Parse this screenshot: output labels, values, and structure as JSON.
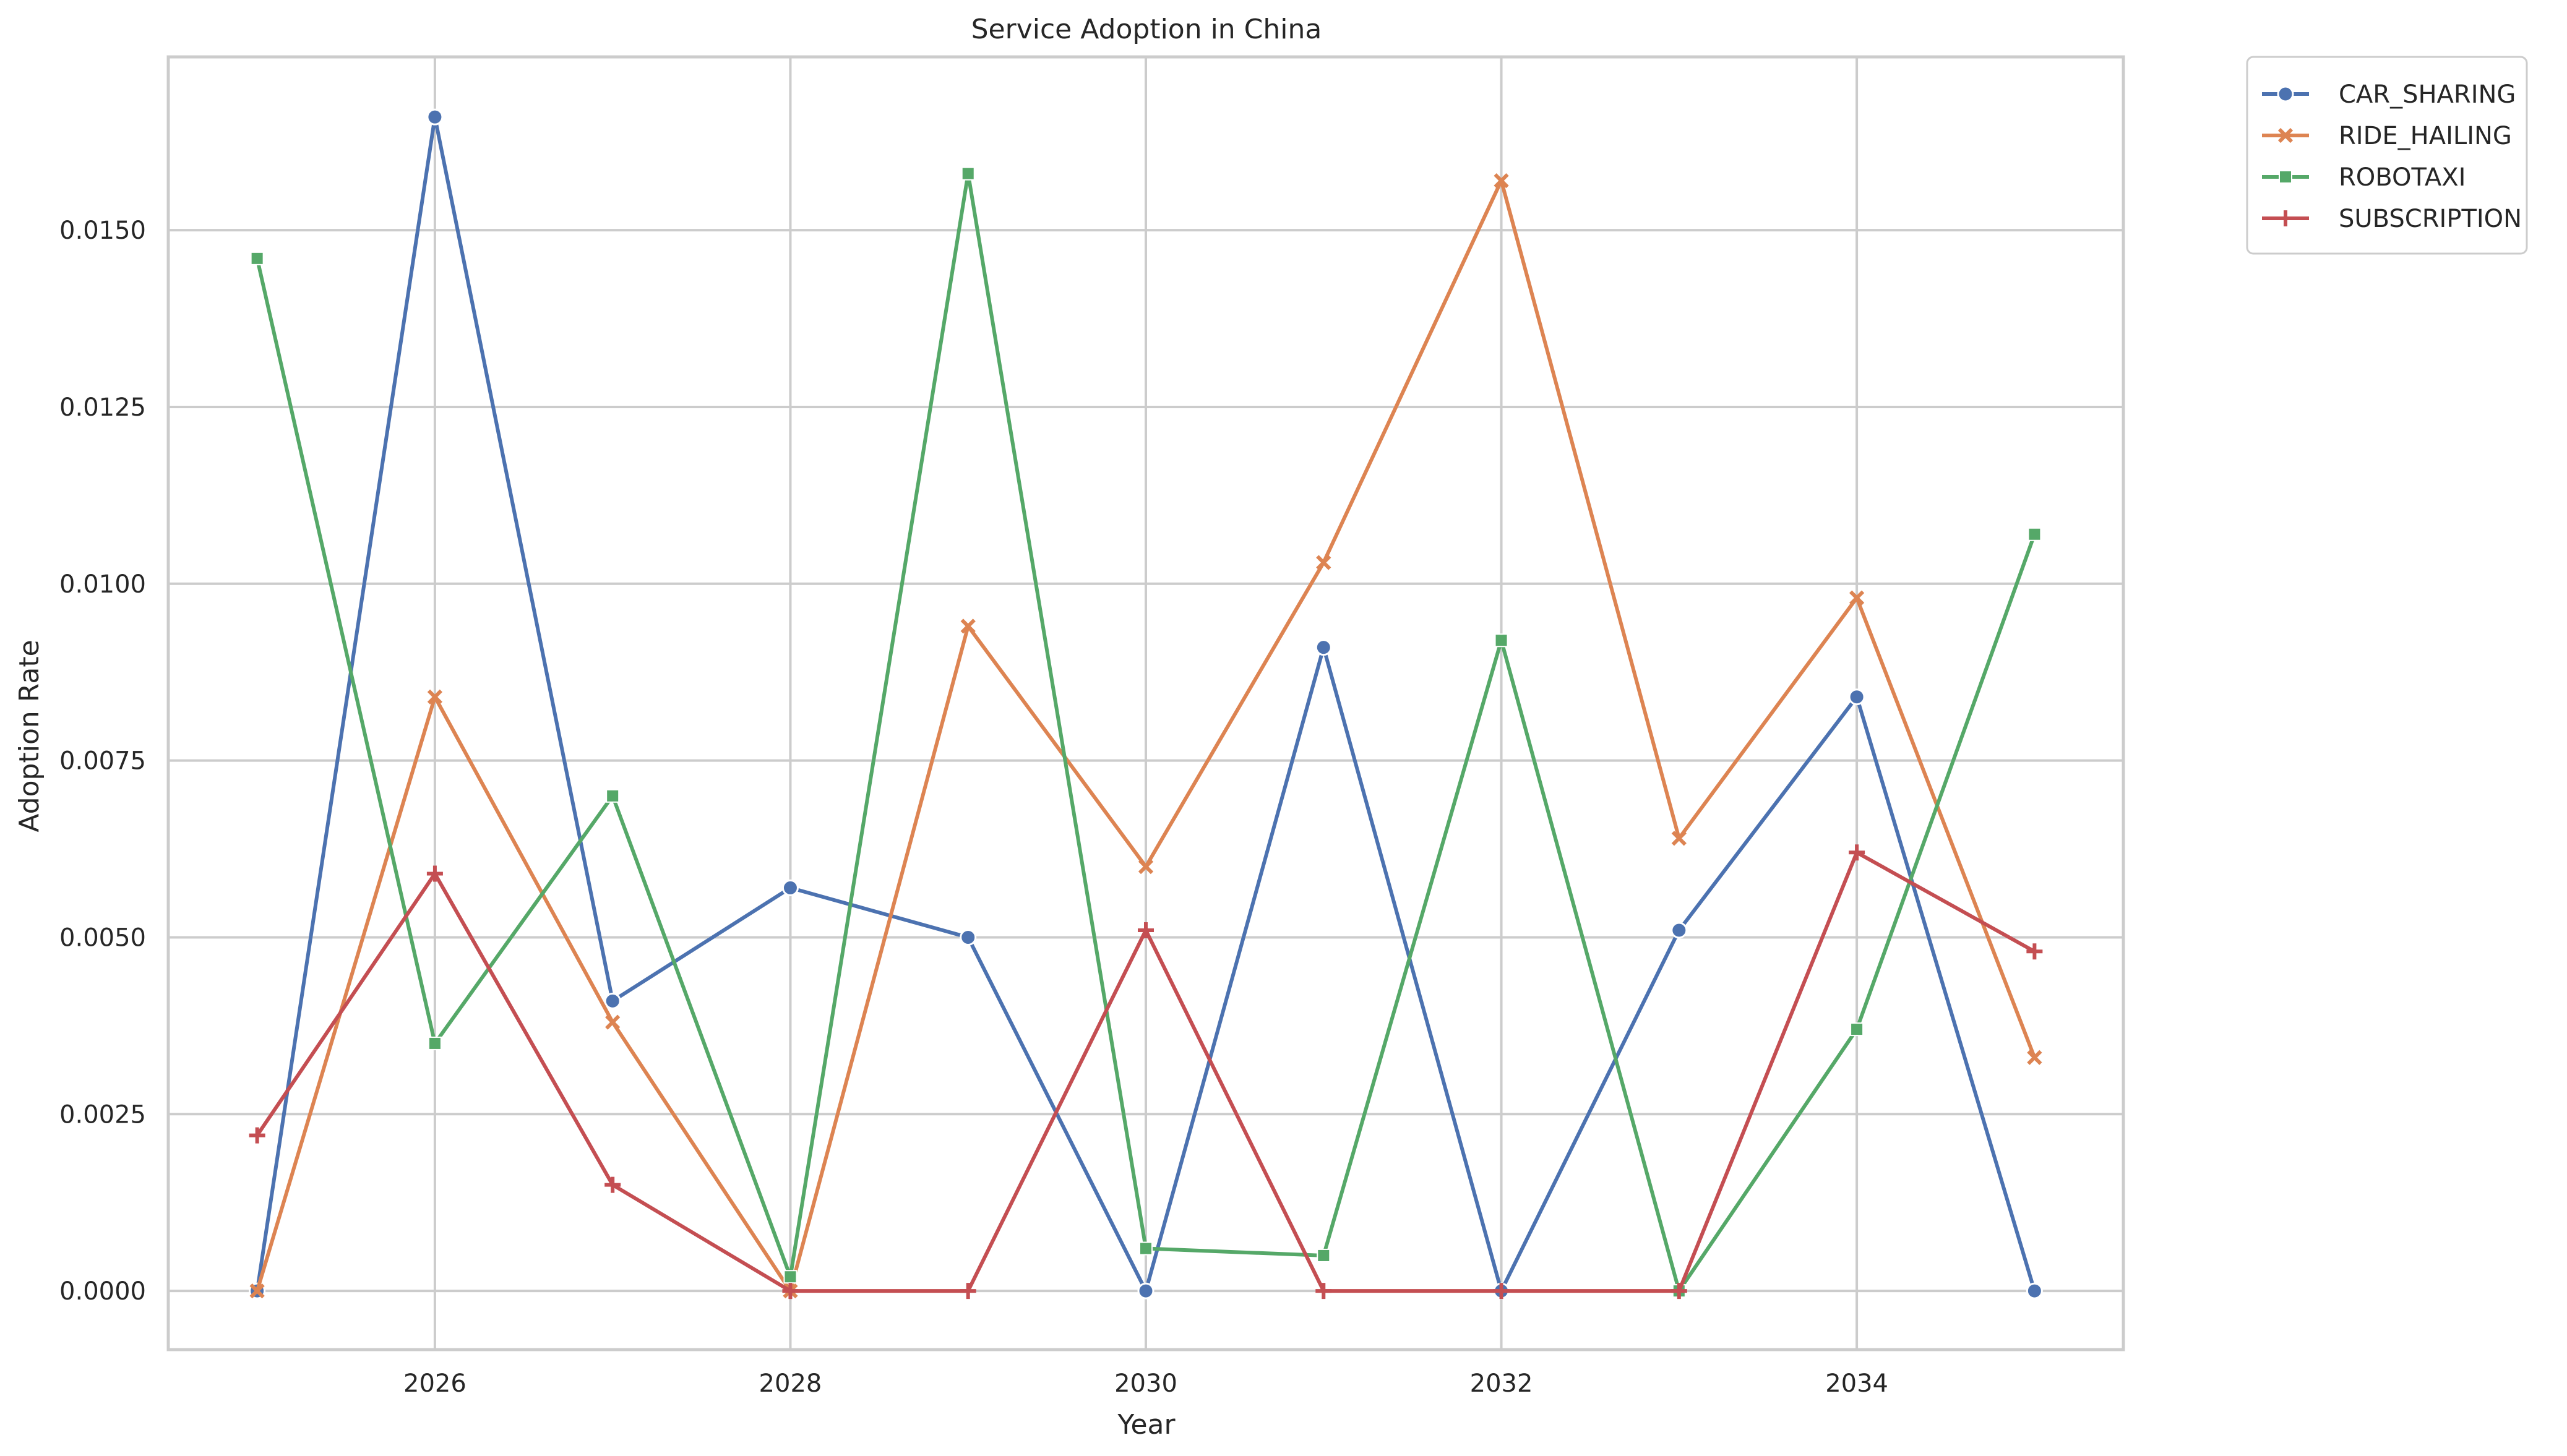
{
  "chart_data": {
    "type": "line",
    "title": "Service Adoption in China",
    "xlabel": "Year",
    "ylabel": "Adoption Rate",
    "x": [
      2025,
      2026,
      2027,
      2028,
      2029,
      2030,
      2031,
      2032,
      2033,
      2034,
      2035
    ],
    "xlim": [
      2024.5,
      2035.5
    ],
    "ylim": [
      -0.00083,
      0.01745
    ],
    "xticks": [
      2026,
      2028,
      2030,
      2032,
      2034
    ],
    "xtick_labels": [
      "2026",
      "2028",
      "2030",
      "2032",
      "2034"
    ],
    "yticks": [
      0,
      0.0025,
      0.005,
      0.0075,
      0.01,
      0.0125,
      0.015
    ],
    "ytick_labels": [
      "0.0000",
      "0.0025",
      "0.0050",
      "0.0075",
      "0.0100",
      "0.0125",
      "0.0150"
    ],
    "grid": true,
    "legend_position": "outside top-right",
    "series": [
      {
        "name": "CAR_SHARING",
        "color": "#4c72b0",
        "marker": "circle",
        "values": [
          0.0,
          0.0166,
          0.0041,
          0.0057,
          0.005,
          0.0,
          0.0091,
          0.0,
          0.0051,
          0.0084,
          0.0
        ]
      },
      {
        "name": "RIDE_HAILING",
        "color": "#dd8452",
        "marker": "x",
        "values": [
          0.0,
          0.0084,
          0.0038,
          0.0,
          0.0094,
          0.006,
          0.0103,
          0.0157,
          0.0064,
          0.0098,
          0.0033
        ]
      },
      {
        "name": "ROBOTAXI",
        "color": "#55a868",
        "marker": "square",
        "values": [
          0.0146,
          0.0035,
          0.007,
          0.0002,
          0.0158,
          0.0006,
          0.0005,
          0.0092,
          0.0,
          0.0037,
          0.0107
        ]
      },
      {
        "name": "SUBSCRIPTION",
        "color": "#c44e52",
        "marker": "plus",
        "values": [
          0.0022,
          0.0059,
          0.0015,
          0.0,
          0.0,
          0.0051,
          0.0,
          0.0,
          0.0,
          0.0062,
          0.0048
        ]
      }
    ]
  }
}
